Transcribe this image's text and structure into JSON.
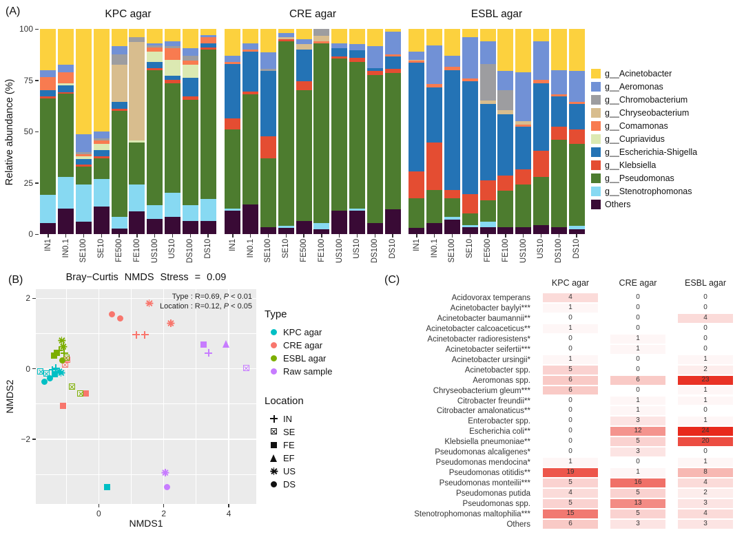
{
  "panels": {
    "a_label": "(A)",
    "b_label": "(B)",
    "c_label": "(C)"
  },
  "chart_data": [
    {
      "id": "A",
      "type": "bar",
      "subtype": "stacked-percent",
      "ylabel": "Relative abundance (%)",
      "ylim": [
        0,
        100
      ],
      "y_ticks": [
        0,
        25,
        50,
        75,
        100
      ],
      "categories": [
        "IN1",
        "IN0.1",
        "SE100",
        "SE10",
        "FE500",
        "FE100",
        "US100",
        "US10",
        "DS100",
        "DS10"
      ],
      "genera": [
        "g__Acinetobacter",
        "g__Aeromonas",
        "g__Chromobacterium",
        "g__Chryseobacterium",
        "g__Comamonas",
        "g__Cupriavidus",
        "g__Escherichia-Shigella",
        "g__Klebsiella",
        "g__Pseudomonas",
        "g__Stenotrophomonas",
        "Others"
      ],
      "colors": [
        "#FCD13E",
        "#7191D6",
        "#9D9DA0",
        "#D8BD8E",
        "#F87B50",
        "#DCE9B2",
        "#2473B5",
        "#E44D32",
        "#4D7C2F",
        "#87D9F2",
        "#390A35"
      ],
      "legend_position": "right",
      "facets": [
        {
          "title": "KPC agar",
          "series": [
            [
              20,
              3.5,
              0,
              0,
              6.5,
              0,
              3,
              1,
              47,
              13.5,
              5.5
            ],
            [
              17.5,
              3.5,
              0,
              0,
              5.5,
              1,
              3.5,
              0.5,
              40.5,
              15.5,
              12.5
            ],
            [
              51.5,
              8.5,
              1,
              0,
              1,
              1.5,
              2.5,
              1,
              9,
              18,
              6
            ],
            [
              50,
              3.5,
              1,
              0,
              1.5,
              3,
              3,
              1,
              10,
              13.5,
              13.5
            ],
            [
              8.5,
              4,
              5,
              18,
              0,
              0,
              3.5,
              1,
              51.5,
              6,
              2.5
            ],
            [
              4,
              0,
              2.5,
              48,
              0,
              1,
              0,
              0,
              20.5,
              13,
              11
            ],
            [
              7,
              1,
              1,
              0,
              2,
              5,
              3,
              1,
              66,
              6.5,
              7.5
            ],
            [
              6,
              2.5,
              1,
              0,
              5.5,
              8,
              2,
              1.5,
              53.5,
              11.5,
              8.5
            ],
            [
              9.5,
              3.5,
              2.5,
              0,
              2,
              6.5,
              9,
              1.5,
              51.5,
              7.5,
              6.5
            ],
            [
              3,
              1,
              0,
              0,
              3,
              0,
              2,
              1,
              73,
              10.5,
              6.5
            ]
          ]
        },
        {
          "title": "CRE agar",
          "series": [
            [
              13,
              3,
              0,
              0,
              1,
              0,
              26.5,
              5.5,
              38.5,
              1,
              11.5
            ],
            [
              7,
              3,
              0,
              0,
              1,
              0,
              19.5,
              1.5,
              53.5,
              0,
              14.5
            ],
            [
              11.5,
              8,
              1,
              0,
              0,
              0,
              32,
              10.5,
              33.5,
              0,
              3.5
            ],
            [
              2,
              2,
              0,
              1,
              0,
              0,
              0,
              1,
              90,
              1,
              3
            ],
            [
              5,
              2.5,
              0,
              2.5,
              0,
              0,
              15.5,
              4.5,
              63.5,
              0,
              6.5
            ],
            [
              0,
              0,
              3.5,
              2.5,
              1,
              0,
              0,
              0,
              87.5,
              3,
              2.5
            ],
            [
              7,
              2.5,
              0,
              0,
              0,
              0,
              4,
              1,
              74,
              0,
              11.5
            ],
            [
              7.5,
              3,
              0,
              0,
              0,
              0,
              3.5,
              2,
              71.5,
              1,
              11.5
            ],
            [
              8.5,
              10.5,
              0,
              0,
              0,
              0,
              1.5,
              2,
              72,
              0,
              5.5
            ],
            [
              1.5,
              11,
              0,
              0,
              1,
              0,
              6,
              2,
              66.5,
              0,
              12
            ]
          ]
        },
        {
          "title": "ESBL agar",
          "series": [
            [
              11,
              4,
              0,
              0.5,
              1,
              0,
              53,
              13,
              14.5,
              0,
              3
            ],
            [
              8,
              19,
              0,
              0,
              1.5,
              0,
              27,
              23,
              16,
              0,
              5.5
            ],
            [
              13,
              5.5,
              0,
              0,
              1.5,
              0,
              58.5,
              4,
              9,
              1.5,
              7
            ],
            [
              4,
              20,
              0,
              0,
              1.5,
              0,
              55,
              9.5,
              5.5,
              1,
              3.5
            ],
            [
              6,
              11,
              18,
              1.5,
              0,
              0,
              37.5,
              9.5,
              10.5,
              2.5,
              3.5
            ],
            [
              20.5,
              9.5,
              9.5,
              2,
              0,
              0,
              30,
              7.5,
              17.5,
              0,
              3.5
            ],
            [
              21,
              24,
              0,
              1.5,
              1,
              0,
              21,
              7.5,
              20.5,
              0,
              3.5
            ],
            [
              6,
              19,
              0,
              0,
              1.5,
              0,
              33,
              12.5,
              23.5,
              0,
              4.5
            ],
            [
              20,
              12,
              0,
              0,
              1,
              0,
              14.5,
              6.5,
              42.5,
              0,
              3.5
            ],
            [
              20.5,
              15,
              0,
              0,
              1,
              0,
              12.5,
              7,
              40,
              1.5,
              2.5
            ]
          ]
        }
      ]
    },
    {
      "id": "B",
      "type": "scatter",
      "title": "Bray−Curtis  NMDS  Stress = 0.09",
      "xlabel": "NMDS1",
      "ylabel": "NMDS2",
      "x_ticks": [
        0,
        2,
        4
      ],
      "y_ticks": [
        2,
        0,
        -2
      ],
      "xlim": [
        -1.93,
        4.84
      ],
      "ylim": [
        -3.83,
        2.26
      ],
      "grid": true,
      "annotation": [
        "Type : R=0.69, P < 0.01",
        "Location : R=0.12, P < 0.05"
      ],
      "legend_type": {
        "title": "Type",
        "items": [
          {
            "label": "KPC agar",
            "color": "#00BFC4"
          },
          {
            "label": "CRE agar",
            "color": "#F8766D"
          },
          {
            "label": "ESBL agar",
            "color": "#7CAE00"
          },
          {
            "label": "Raw sample",
            "color": "#C77CFF"
          }
        ]
      },
      "legend_location": {
        "title": "Location",
        "items": [
          {
            "label": "IN",
            "shape": "plus"
          },
          {
            "label": "SE",
            "shape": "square-x"
          },
          {
            "label": "FE",
            "shape": "square"
          },
          {
            "label": "EF",
            "shape": "triangle"
          },
          {
            "label": "US",
            "shape": "asterisk"
          },
          {
            "label": "DS",
            "shape": "circle"
          }
        ]
      },
      "groups": [
        {
          "name": "KPC agar",
          "color": "#00BFC4",
          "points": [
            {
              "shape": "square-x",
              "x": -1.78,
              "y": -0.08
            },
            {
              "shape": "square-x",
              "x": -1.6,
              "y": -0.14
            },
            {
              "shape": "circle",
              "x": -1.66,
              "y": -0.36
            },
            {
              "shape": "circle",
              "x": -1.5,
              "y": -0.27
            },
            {
              "shape": "plus",
              "x": -1.42,
              "y": -0.03
            },
            {
              "shape": "plus",
              "x": -1.31,
              "y": 0.02
            },
            {
              "shape": "asterisk",
              "x": -1.22,
              "y": -0.08
            },
            {
              "shape": "asterisk",
              "x": -1.16,
              "y": -0.12
            },
            {
              "shape": "square",
              "x": -1.36,
              "y": -0.16
            },
            {
              "shape": "square",
              "x": 0.25,
              "y": -3.36
            }
          ]
        },
        {
          "name": "CRE agar",
          "color": "#F8766D",
          "points": [
            {
              "shape": "circle",
              "x": 0.4,
              "y": 1.55
            },
            {
              "shape": "circle",
              "x": 0.66,
              "y": 1.42
            },
            {
              "shape": "plus",
              "x": 1.15,
              "y": 0.97
            },
            {
              "shape": "plus",
              "x": 1.42,
              "y": 0.97
            },
            {
              "shape": "asterisk",
              "x": 1.55,
              "y": 1.86
            },
            {
              "shape": "asterisk",
              "x": 2.22,
              "y": 1.3
            },
            {
              "shape": "square-x",
              "x": -1.03,
              "y": 0.12
            },
            {
              "shape": "square-x",
              "x": -0.97,
              "y": 0.24
            },
            {
              "shape": "square",
              "x": -0.4,
              "y": -0.7
            },
            {
              "shape": "square",
              "x": -1.1,
              "y": -1.05
            }
          ]
        },
        {
          "name": "ESBL agar",
          "color": "#7CAE00",
          "points": [
            {
              "shape": "asterisk",
              "x": -1.14,
              "y": 0.8
            },
            {
              "shape": "asterisk",
              "x": -1.08,
              "y": 0.62
            },
            {
              "shape": "plus",
              "x": -1.22,
              "y": 0.53
            },
            {
              "shape": "plus",
              "x": -1.06,
              "y": 0.45
            },
            {
              "shape": "square",
              "x": -1.37,
              "y": 0.38
            },
            {
              "shape": "square",
              "x": -1.29,
              "y": 0.46
            },
            {
              "shape": "square-x",
              "x": -0.82,
              "y": -0.52
            },
            {
              "shape": "square-x",
              "x": -0.55,
              "y": -0.7
            },
            {
              "shape": "circle",
              "x": -1.12,
              "y": 0.24
            },
            {
              "shape": "square-x",
              "x": -0.98,
              "y": 0.3
            }
          ]
        },
        {
          "name": "Raw sample",
          "color": "#C77CFF",
          "points": [
            {
              "shape": "square",
              "x": 3.22,
              "y": 0.68
            },
            {
              "shape": "triangle",
              "x": 3.92,
              "y": 0.7
            },
            {
              "shape": "plus",
              "x": 3.38,
              "y": 0.45
            },
            {
              "shape": "square-x",
              "x": 4.55,
              "y": 0.02
            },
            {
              "shape": "asterisk",
              "x": 2.05,
              "y": -2.95
            },
            {
              "shape": "circle",
              "x": 2.1,
              "y": -3.35
            }
          ]
        }
      ]
    },
    {
      "id": "C",
      "type": "heatmap",
      "columns": [
        "KPC agar",
        "CRE agar",
        "ESBL agar"
      ],
      "max_value": 24,
      "max_color": "#E8291C",
      "min_color": "#FFFFFF",
      "rows": [
        {
          "label": "Acidovorax temperans",
          "values": [
            4,
            0,
            0
          ]
        },
        {
          "label": "Acinetobacter baylyi***",
          "values": [
            1,
            0,
            0
          ]
        },
        {
          "label": "Acinetobacter baumannii**",
          "values": [
            0,
            0,
            4
          ]
        },
        {
          "label": "Acinetobacter calcoaceticus**",
          "values": [
            1,
            0,
            0
          ]
        },
        {
          "label": "Acinetobacter radioresistens*",
          "values": [
            0,
            1,
            0
          ]
        },
        {
          "label": "Acinetobacter seifertii***",
          "values": [
            0,
            1,
            0
          ]
        },
        {
          "label": "Acinetobacter ursingii*",
          "values": [
            1,
            0,
            1
          ]
        },
        {
          "label": "Acinetobacter spp.",
          "values": [
            5,
            0,
            2
          ]
        },
        {
          "label": "Aeromonas spp.",
          "values": [
            6,
            6,
            23
          ]
        },
        {
          "label": "Chryseobacterium gleum***",
          "values": [
            6,
            0,
            1
          ]
        },
        {
          "label": "Citrobacter freundii**",
          "values": [
            0,
            1,
            1
          ]
        },
        {
          "label": "Citrobacter amalonaticus**",
          "values": [
            0,
            1,
            0
          ]
        },
        {
          "label": "Enterobacter spp.",
          "values": [
            0,
            3,
            1
          ]
        },
        {
          "label": "Escherichia coli**",
          "values": [
            0,
            12,
            24
          ]
        },
        {
          "label": "Klebsiella pneumoniae**",
          "values": [
            0,
            5,
            20
          ]
        },
        {
          "label": "Pseudomonas alcaligenes*",
          "values": [
            0,
            3,
            0
          ]
        },
        {
          "label": "Pseudomonas mendocina*",
          "values": [
            1,
            0,
            1
          ]
        },
        {
          "label": "Pseudomonas otitidis**",
          "values": [
            19,
            1,
            8
          ]
        },
        {
          "label": "Pseudomonas monteilii***",
          "values": [
            5,
            16,
            4
          ]
        },
        {
          "label": "Pseudomonas putida",
          "values": [
            4,
            5,
            2
          ]
        },
        {
          "label": "Pseudomonas spp.",
          "values": [
            5,
            13,
            3
          ]
        },
        {
          "label": "Stenotrophomonas maltophilia***",
          "values": [
            15,
            5,
            4
          ]
        },
        {
          "label": "Others",
          "values": [
            6,
            3,
            3
          ]
        }
      ]
    }
  ]
}
